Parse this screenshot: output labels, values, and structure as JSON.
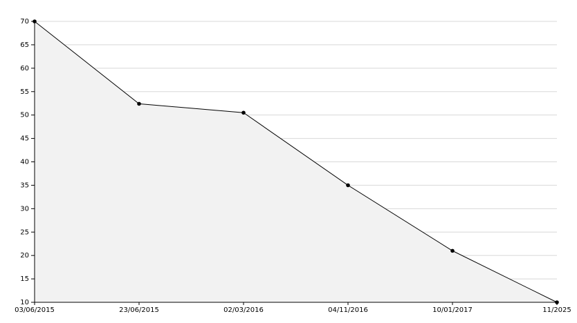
{
  "chart_data": {
    "type": "area",
    "categories": [
      "03/06/2015",
      "23/06/2015",
      "02/03/2016",
      "04/11/2016",
      "10/01/2017",
      "11/2025"
    ],
    "values": [
      70,
      52.4,
      50.5,
      35,
      21,
      10
    ],
    "color": "#000000",
    "fill": "#f2f2f2",
    "ylim": [
      10,
      70
    ],
    "yticks": [
      10,
      15,
      20,
      25,
      30,
      35,
      40,
      45,
      50,
      55,
      60,
      65,
      70
    ],
    "grid": true
  }
}
